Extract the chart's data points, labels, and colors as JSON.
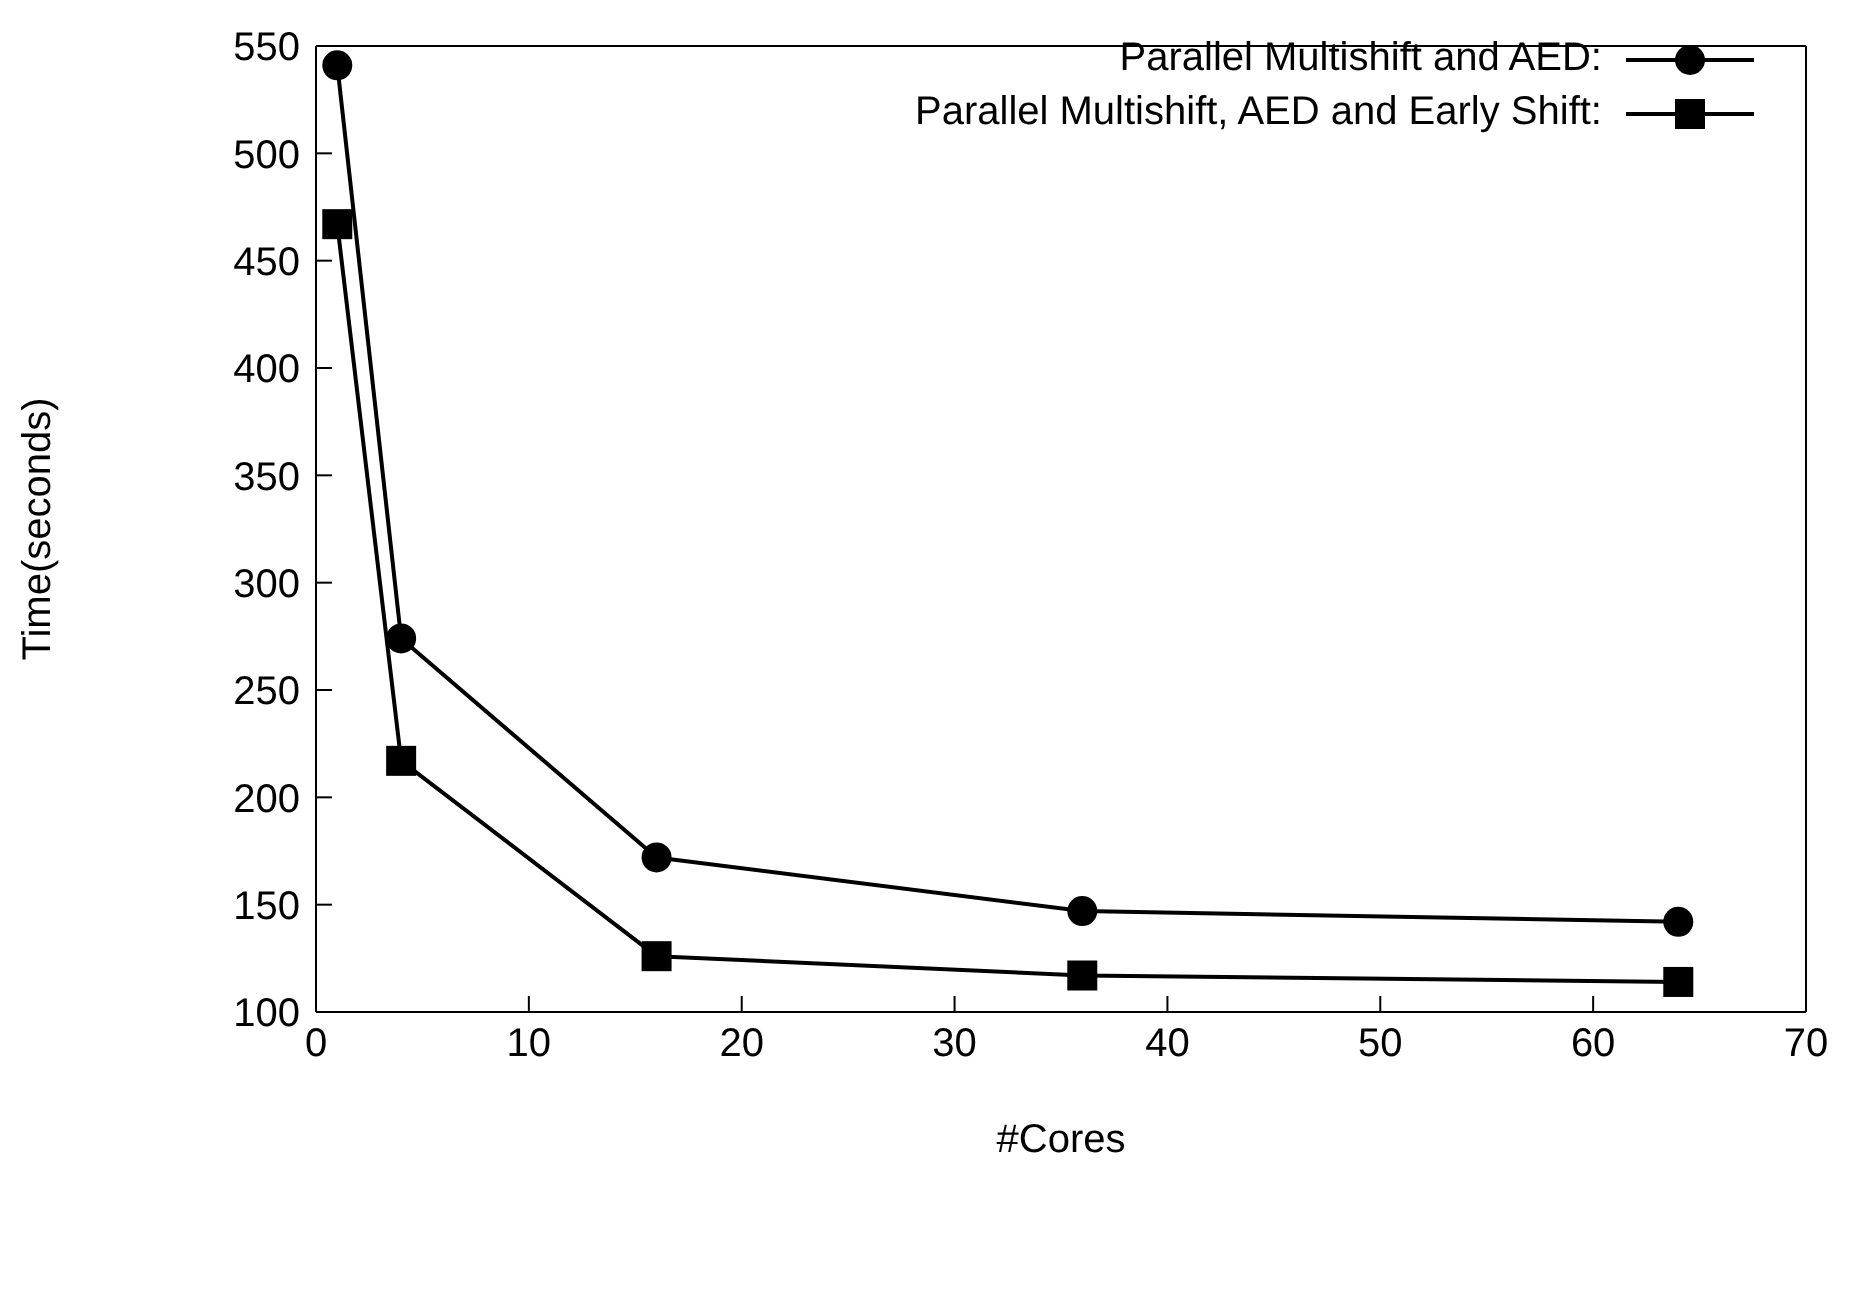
{
  "chart_data": {
    "type": "line",
    "xlabel": "#Cores",
    "ylabel": "Time(seconds)",
    "x": [
      1,
      4,
      16,
      36,
      64
    ],
    "series": [
      {
        "name": "Parallel Multishift and AED:",
        "color": "#000000",
        "marker": "circle",
        "values": [
          541,
          274,
          172,
          147,
          142
        ]
      },
      {
        "name": "Parallel Multishift, AED and Early Shift:",
        "color": "#000000",
        "marker": "square",
        "values": [
          467,
          217,
          126,
          117,
          114
        ]
      }
    ],
    "xlim": [
      0,
      70
    ],
    "xticks": [
      0,
      10,
      20,
      30,
      40,
      50,
      60,
      70
    ],
    "ylim": [
      100,
      550
    ],
    "yticks": [
      100,
      150,
      200,
      250,
      300,
      350,
      400,
      450,
      500,
      550
    ],
    "legend": "top right",
    "line_style": "solid"
  }
}
